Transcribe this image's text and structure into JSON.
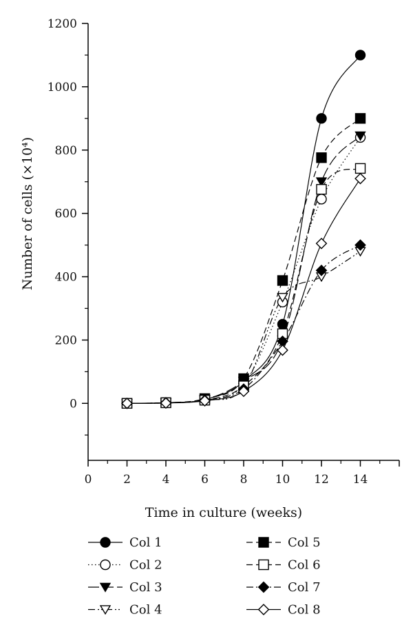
{
  "chart_data": {
    "type": "line",
    "title": "",
    "xlabel": "Time in culture (weeks)",
    "ylabel": "Number of cells (×10⁴)",
    "xlim": [
      0,
      16
    ],
    "ylim": [
      -180,
      1200
    ],
    "xticks": [
      0,
      2,
      4,
      6,
      8,
      10,
      12,
      14
    ],
    "yticks": [
      0,
      200,
      400,
      600,
      800,
      1000,
      1200
    ],
    "x": [
      2,
      4,
      6,
      8,
      10,
      12,
      14
    ],
    "grid": false,
    "legend_position": "bottom",
    "series": [
      {
        "name": "Col 1",
        "marker": "circle-filled",
        "dash": "solid",
        "values": [
          0,
          2,
          12,
          70,
          250,
          900,
          1100
        ]
      },
      {
        "name": "Col 2",
        "marker": "circle-open",
        "dash": "dotted",
        "values": [
          0,
          2,
          10,
          60,
          320,
          645,
          840
        ]
      },
      {
        "name": "Col 3",
        "marker": "triangle-filled",
        "dash": "long-dash",
        "values": [
          0,
          2,
          12,
          70,
          200,
          700,
          845
        ]
      },
      {
        "name": "Col 4",
        "marker": "triangle-open",
        "dash": "dash-dot-dot",
        "values": [
          0,
          1,
          10,
          50,
          335,
          400,
          480
        ]
      },
      {
        "name": "Col 5",
        "marker": "square-filled",
        "dash": "dash",
        "values": [
          0,
          2,
          15,
          78,
          388,
          776,
          900
        ]
      },
      {
        "name": "Col 6",
        "marker": "square-open",
        "dash": "dash",
        "values": [
          0,
          2,
          10,
          55,
          220,
          676,
          742
        ]
      },
      {
        "name": "Col 7",
        "marker": "diamond-filled",
        "dash": "dash-dot",
        "values": [
          0,
          2,
          10,
          45,
          196,
          420,
          500
        ]
      },
      {
        "name": "Col 8",
        "marker": "diamond-open",
        "dash": "solid",
        "values": [
          0,
          1,
          8,
          38,
          168,
          505,
          710
        ]
      }
    ]
  }
}
